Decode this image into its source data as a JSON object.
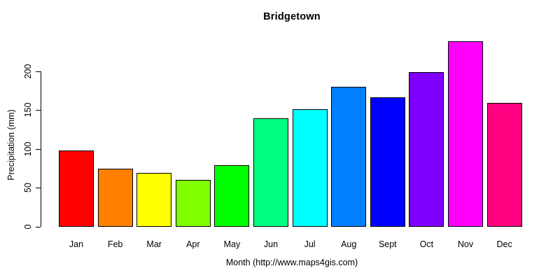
{
  "chart_data": {
    "type": "bar",
    "title": "Bridgetown",
    "xlabel": "Month (http://www.maps4gis.com)",
    "ylabel": "Precipitation (mm)",
    "categories": [
      "Jan",
      "Feb",
      "Mar",
      "Apr",
      "May",
      "Jun",
      "Jul",
      "Aug",
      "Sept",
      "Oct",
      "Nov",
      "Dec"
    ],
    "values": [
      98,
      75,
      69,
      60,
      79,
      139,
      151,
      180,
      166,
      199,
      238,
      159
    ],
    "bar_colors": [
      "#FF0000",
      "#FF8000",
      "#FFFF00",
      "#80FF00",
      "#00FF00",
      "#00FF80",
      "#00FFFF",
      "#0080FF",
      "#0000FF",
      "#8000FF",
      "#FF00FF",
      "#FF0080"
    ],
    "bar_border_color": "#000000",
    "yticks": [
      0,
      50,
      100,
      150,
      200
    ],
    "ylim": [
      0,
      240
    ],
    "grid": false,
    "legend": "none",
    "background_color": "#ffffff",
    "text_color": "#000000"
  }
}
